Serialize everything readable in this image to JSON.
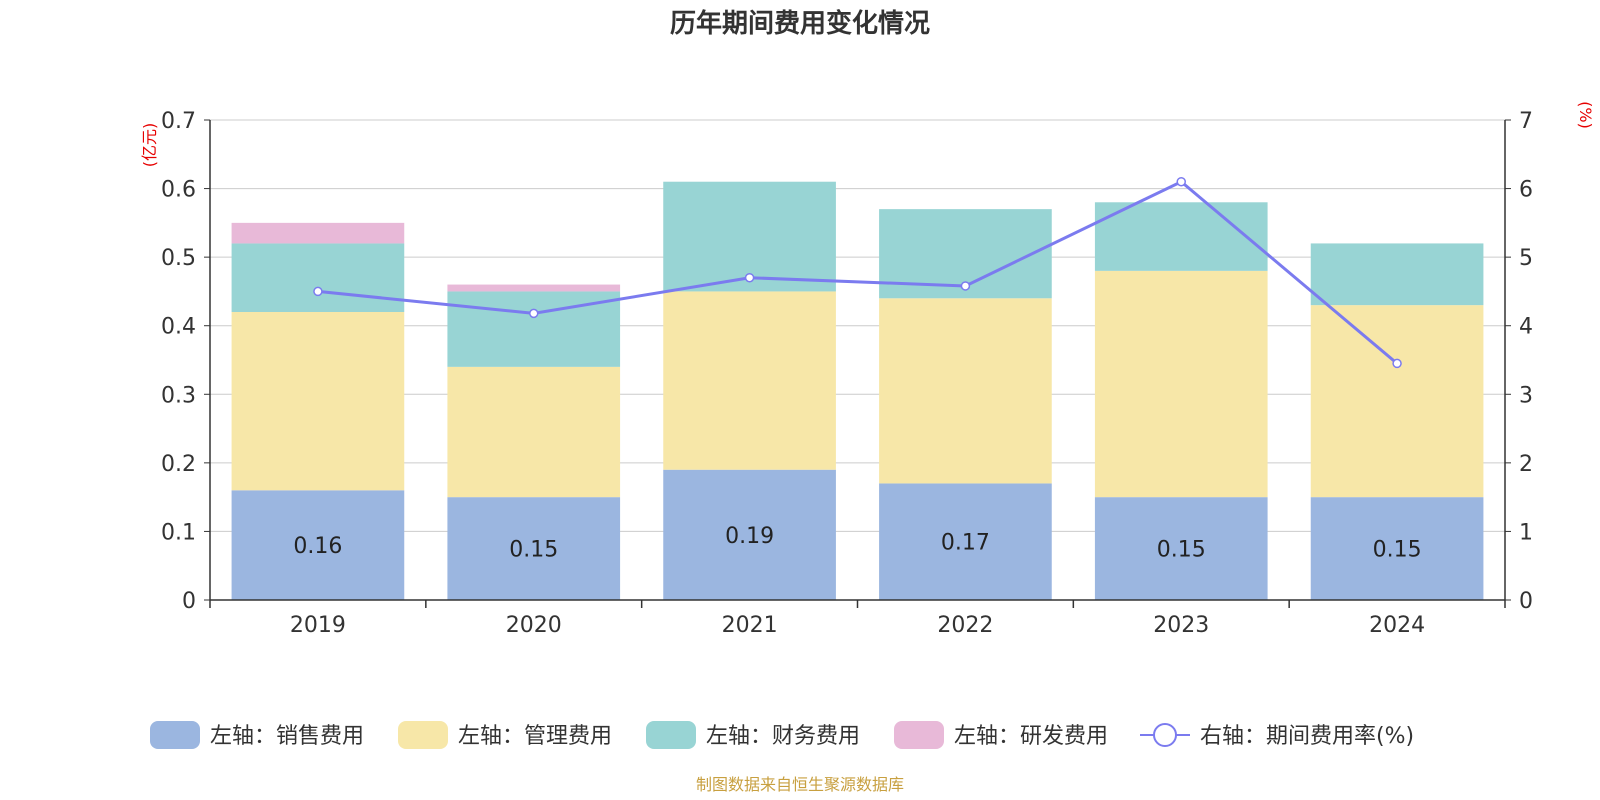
{
  "chart_data": {
    "type": "bar",
    "title": "历年期间费用变化情况",
    "left_unit": "(亿元)",
    "right_unit": "(%)",
    "categories": [
      "2019",
      "2020",
      "2021",
      "2022",
      "2023",
      "2024"
    ],
    "ylim_left": [
      0,
      0.7
    ],
    "yticks_left": [
      "0",
      "0.1",
      "0.2",
      "0.3",
      "0.4",
      "0.5",
      "0.6",
      "0.7"
    ],
    "ylim_right": [
      0,
      7
    ],
    "yticks_right": [
      "0",
      "1",
      "2",
      "3",
      "4",
      "5",
      "6",
      "7"
    ],
    "grid": true,
    "legend_position": "bottom",
    "series": [
      {
        "name": "左轴：销售费用",
        "type": "bar",
        "axis": "left",
        "color": "#9bb6e0",
        "values": [
          0.16,
          0.15,
          0.19,
          0.17,
          0.15,
          0.15
        ],
        "labels": [
          "0.16",
          "0.15",
          "0.19",
          "0.17",
          "0.15",
          "0.15"
        ]
      },
      {
        "name": "左轴：管理费用",
        "type": "bar",
        "axis": "left",
        "color": "#f7e7a8",
        "values": [
          0.26,
          0.19,
          0.26,
          0.27,
          0.33,
          0.28
        ]
      },
      {
        "name": "左轴：财务费用",
        "type": "bar",
        "axis": "left",
        "color": "#98d4d4",
        "values": [
          0.1,
          0.11,
          0.16,
          0.13,
          0.1,
          0.09
        ]
      },
      {
        "name": "左轴：研发费用",
        "type": "bar",
        "axis": "left",
        "color": "#e8b9d8",
        "values": [
          0.03,
          0.01,
          0.0,
          0.0,
          0.0,
          0.0
        ]
      },
      {
        "name": "右轴：期间费用率(%)",
        "type": "line",
        "axis": "right",
        "color": "#7b7bef",
        "values": [
          4.5,
          4.18,
          4.7,
          4.58,
          6.1,
          3.45
        ]
      }
    ],
    "source": "制图数据来自恒生聚源数据库"
  }
}
